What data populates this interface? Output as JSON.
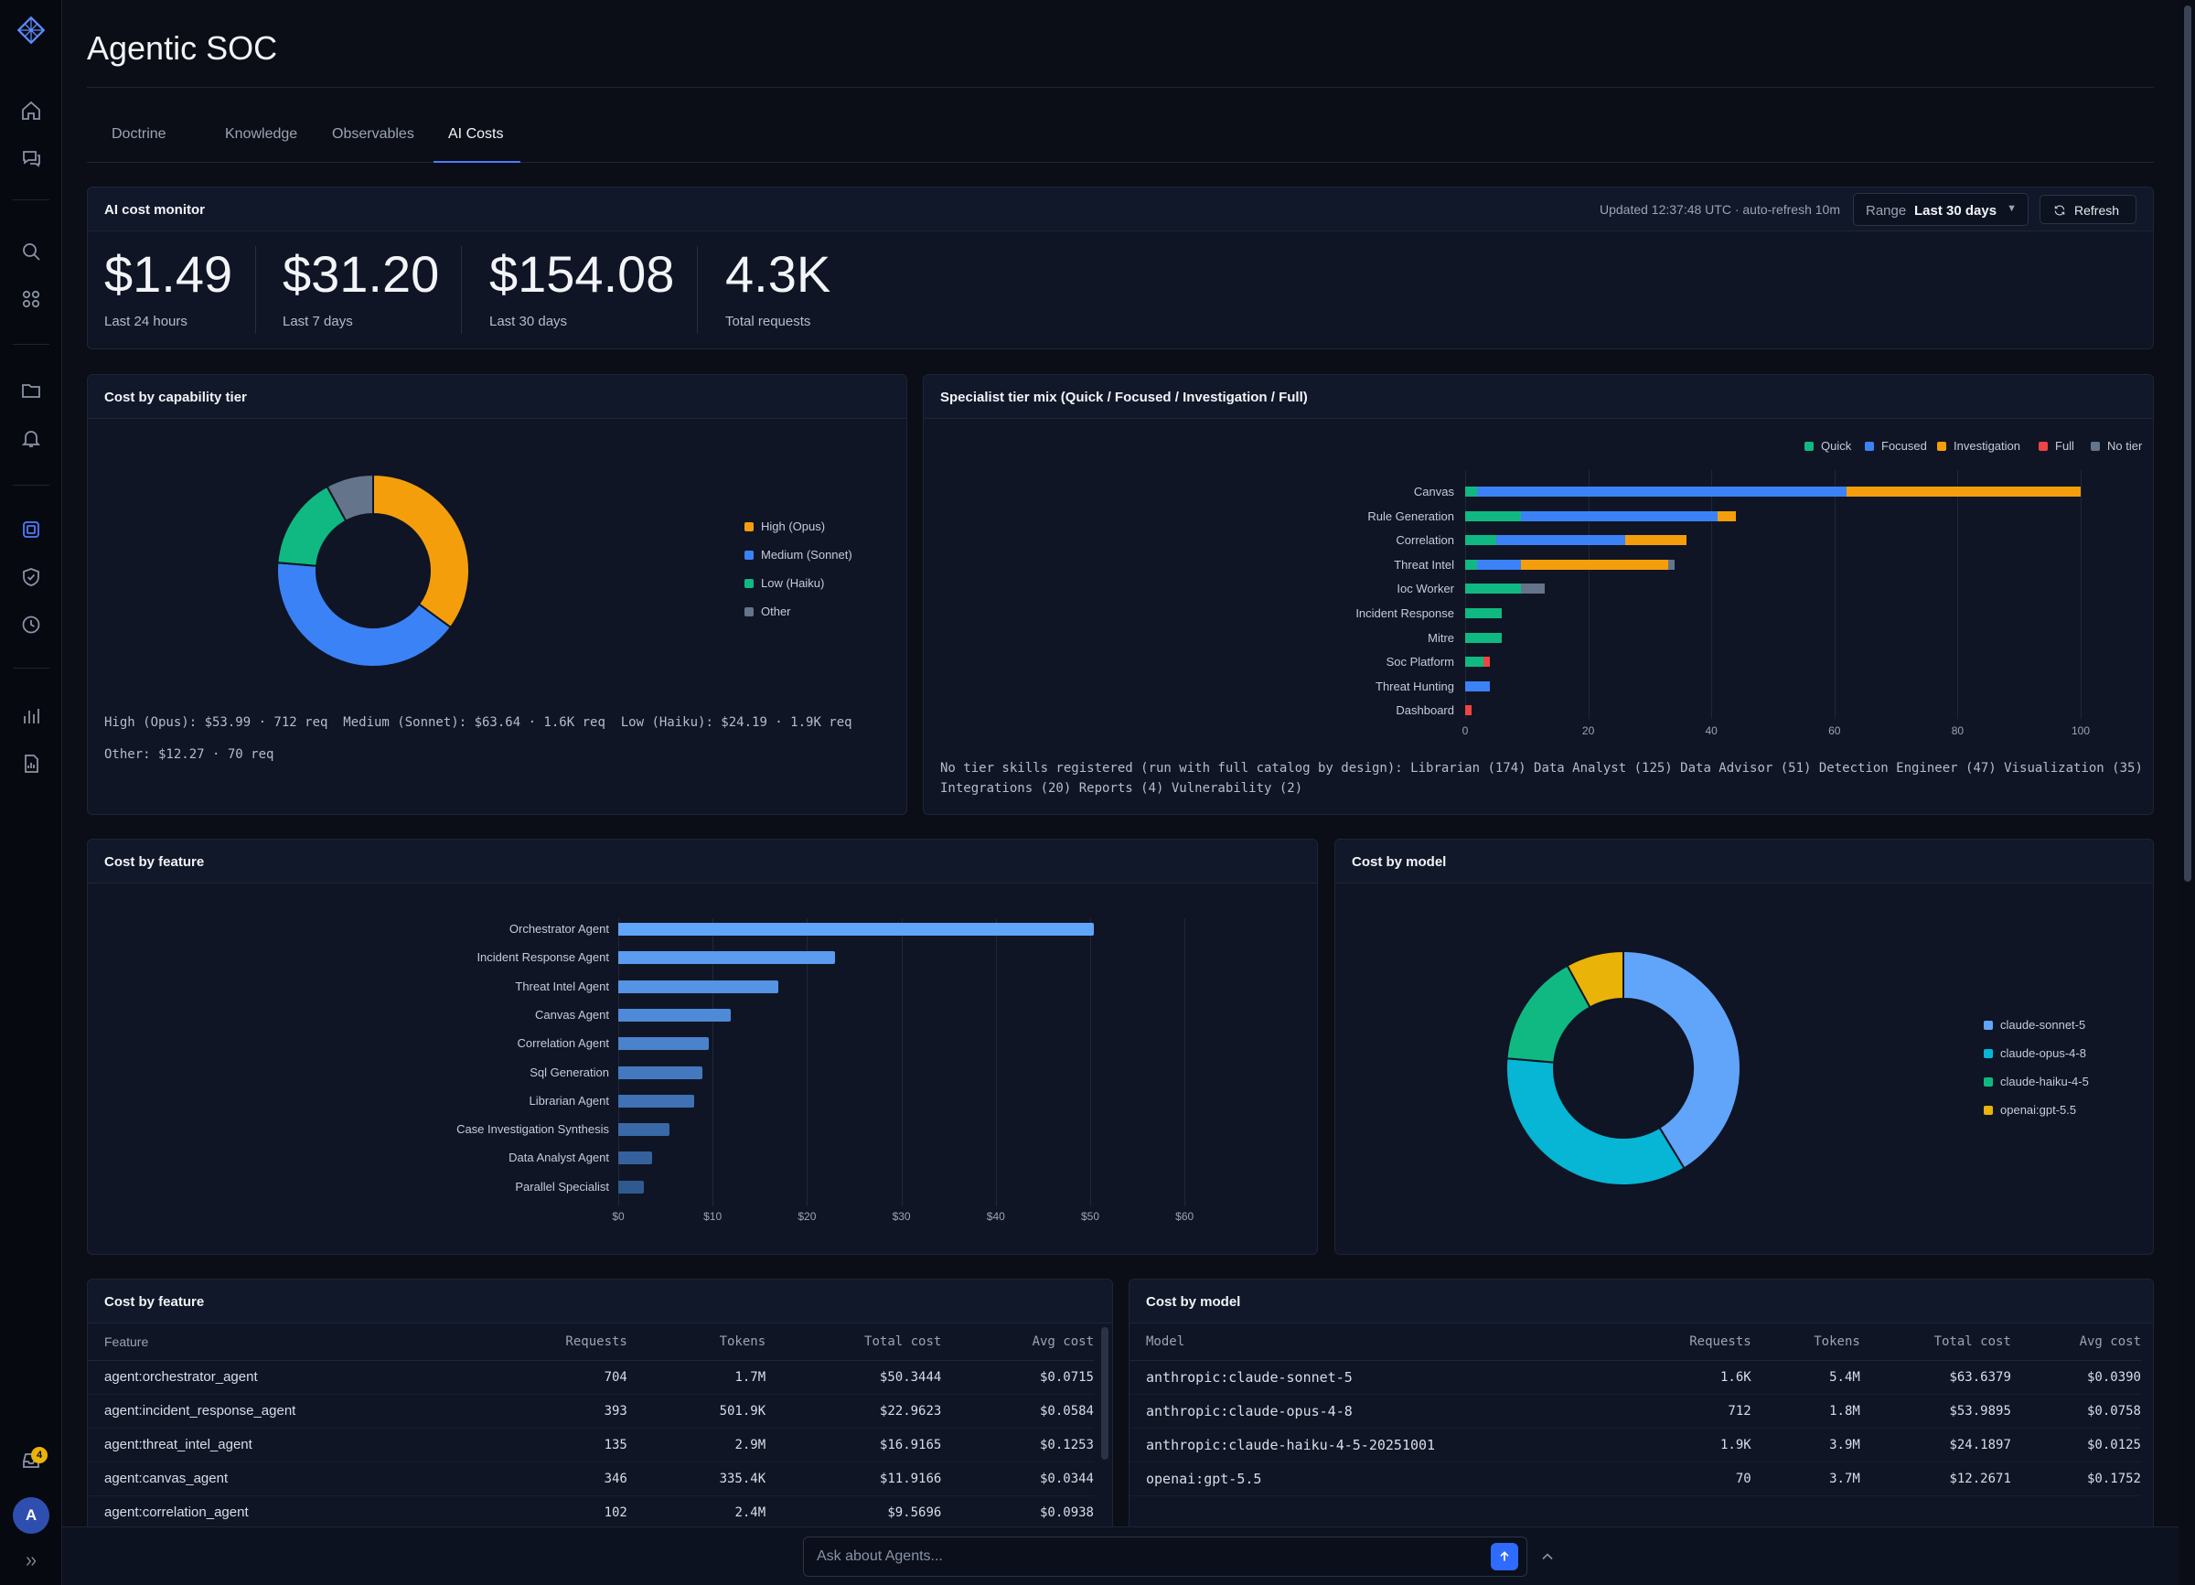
{
  "app": {
    "title": "Agentic SOC"
  },
  "tabs": [
    {
      "label": "Doctrine"
    },
    {
      "label": "Knowledge"
    },
    {
      "label": "Observables"
    },
    {
      "label": "AI Costs"
    }
  ],
  "active_tab": "AI Costs",
  "rail": {
    "icons": [
      "logo-icon",
      "home-icon",
      "chat-icon",
      "search-icon",
      "apps-icon",
      "folder-icon",
      "bell-icon",
      "agents-icon",
      "shield-icon",
      "clock-icon",
      "chart-icon",
      "report-icon",
      "inbox-icon",
      "avatar",
      "expand-icon"
    ],
    "notification_count": "4",
    "avatar_initial": "A"
  },
  "monitor": {
    "title": "AI cost monitor",
    "updated": "Updated 12:37:48 UTC · auto-refresh 10m",
    "range_label": "Range",
    "range_value": "Last 30 days",
    "refresh_label": "Refresh",
    "stats": [
      {
        "value": "$1.49",
        "label": "Last 24 hours"
      },
      {
        "value": "$31.20",
        "label": "Last 7 days"
      },
      {
        "value": "$154.08",
        "label": "Last 30 days"
      },
      {
        "value": "4.3K",
        "label": "Total requests"
      }
    ]
  },
  "tier_panel": {
    "title": "Cost by capability tier",
    "summary_line1": "High (Opus): $53.99 · 712 req  Medium (Sonnet): $63.64 · 1.6K req  Low (Haiku): $24.19 · 1.9K req",
    "summary_line2": "Other: $12.27 · 70 req"
  },
  "mix_panel": {
    "title": "Specialist tier mix (Quick / Focused / Investigation / Full)",
    "footnote_line1": "No tier skills registered (run with full catalog by design): Librarian (174) Data Analyst (125) Data Advisor (51) Detection Engineer (47) Visualization (35)",
    "footnote_line2": "Integrations (20) Reports (4) Vulnerability (2)"
  },
  "feature_chart_panel": {
    "title": "Cost by feature"
  },
  "model_chart_panel": {
    "title": "Cost by model"
  },
  "chart_data": [
    {
      "type": "pie",
      "title": "Cost by capability tier",
      "donut": true,
      "categories": [
        "High (Opus)",
        "Medium (Sonnet)",
        "Low (Haiku)",
        "Other"
      ],
      "values": [
        53.99,
        63.64,
        24.19,
        12.27
      ],
      "colors": [
        "#f59e0b",
        "#3b82f6",
        "#10b981",
        "#64748b"
      ],
      "legend": "right"
    },
    {
      "type": "bar",
      "orientation": "horizontal",
      "stacked": true,
      "title": "Specialist tier mix (Quick / Focused / Investigation / Full)",
      "categories": [
        "Canvas",
        "Rule Generation",
        "Correlation",
        "Threat Intel",
        "Ioc Worker",
        "Incident Response",
        "Mitre",
        "Soc Platform",
        "Threat Hunting",
        "Dashboard"
      ],
      "series": [
        {
          "name": "Quick",
          "color": "#10b981",
          "values": [
            2,
            9,
            5,
            2,
            9,
            6,
            6,
            3,
            0,
            0
          ]
        },
        {
          "name": "Focused",
          "color": "#3b82f6",
          "values": [
            60,
            32,
            21,
            7,
            0,
            0,
            0,
            0,
            4,
            0
          ]
        },
        {
          "name": "Investigation",
          "color": "#f59e0b",
          "values": [
            38,
            3,
            10,
            24,
            0,
            0,
            0,
            0,
            0,
            0
          ]
        },
        {
          "name": "Full",
          "color": "#ef4444",
          "values": [
            0,
            0,
            0,
            0,
            0,
            0,
            0,
            1,
            0,
            1
          ]
        },
        {
          "name": "No tier",
          "color": "#64748b",
          "values": [
            0,
            0,
            0,
            1,
            4,
            0,
            0,
            0,
            0,
            0
          ]
        }
      ],
      "xlim": [
        0,
        100
      ],
      "xticks": [
        "0",
        "20",
        "40",
        "60",
        "80",
        "100"
      ],
      "legend": "top-right",
      "grid": true
    },
    {
      "type": "bar",
      "orientation": "horizontal",
      "title": "Cost by feature",
      "categories": [
        "Orchestrator Agent",
        "Incident Response Agent",
        "Threat Intel Agent",
        "Canvas Agent",
        "Correlation Agent",
        "Sql Generation",
        "Librarian Agent",
        "Case Investigation Synthesis",
        "Data Analyst Agent",
        "Parallel Specialist"
      ],
      "values": [
        50.34,
        22.96,
        16.92,
        11.92,
        9.57,
        8.9,
        8.0,
        5.4,
        3.6,
        2.7
      ],
      "xlim": [
        0,
        60
      ],
      "xticks": [
        "$0",
        "$10",
        "$20",
        "$30",
        "$40",
        "$50",
        "$60"
      ],
      "grid": true
    },
    {
      "type": "pie",
      "title": "Cost by model",
      "donut": true,
      "categories": [
        "claude-sonnet-5",
        "claude-opus-4-8",
        "claude-haiku-4-5",
        "openai:gpt-5.5"
      ],
      "values": [
        63.64,
        53.99,
        24.19,
        12.27
      ],
      "colors": [
        "#60a5fa",
        "#06b6d4",
        "#10b981",
        "#eab308"
      ],
      "legend": "right"
    }
  ],
  "feature_table": {
    "title": "Cost by feature",
    "columns": [
      "Feature",
      "Requests",
      "Tokens",
      "Total cost",
      "Avg cost"
    ],
    "rows": [
      [
        "agent:orchestrator_agent",
        "704",
        "1.7M",
        "$50.3444",
        "$0.0715"
      ],
      [
        "agent:incident_response_agent",
        "393",
        "501.9K",
        "$22.9623",
        "$0.0584"
      ],
      [
        "agent:threat_intel_agent",
        "135",
        "2.9M",
        "$16.9165",
        "$0.1253"
      ],
      [
        "agent:canvas_agent",
        "346",
        "335.4K",
        "$11.9166",
        "$0.0344"
      ],
      [
        "agent:correlation_agent",
        "102",
        "2.4M",
        "$9.5696",
        "$0.0938"
      ]
    ]
  },
  "model_table": {
    "title": "Cost by model",
    "columns": [
      "Model",
      "Requests",
      "Tokens",
      "Total cost",
      "Avg cost"
    ],
    "rows": [
      [
        "anthropic:claude-sonnet-5",
        "1.6K",
        "5.4M",
        "$63.6379",
        "$0.0390"
      ],
      [
        "anthropic:claude-opus-4-8",
        "712",
        "1.8M",
        "$53.9895",
        "$0.0758"
      ],
      [
        "anthropic:claude-haiku-4-5-20251001",
        "1.9K",
        "3.9M",
        "$24.1897",
        "$0.0125"
      ],
      [
        "openai:gpt-5.5",
        "70",
        "3.7M",
        "$12.2671",
        "$0.1752"
      ]
    ]
  },
  "chat": {
    "placeholder": "Ask about Agents..."
  }
}
